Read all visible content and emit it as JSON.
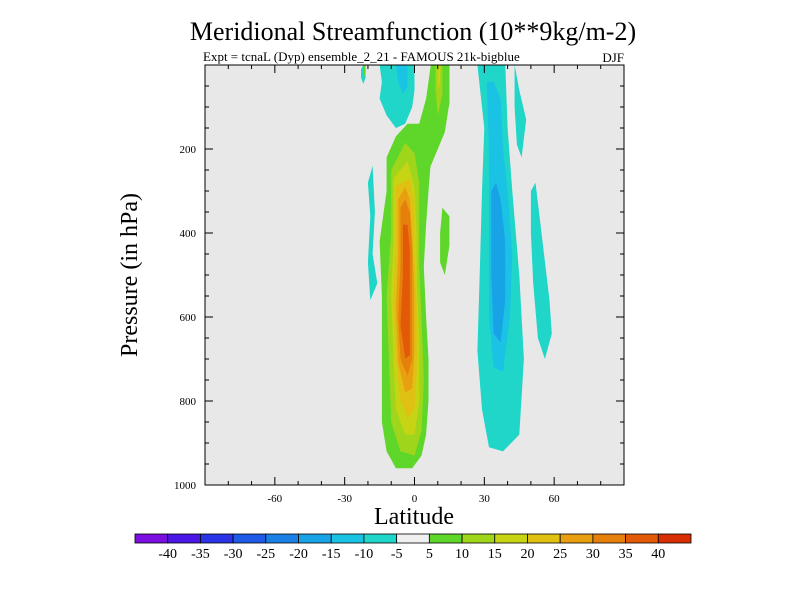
{
  "chart_data": {
    "type": "heatmap",
    "title": "Meridional Streamfunction (10**9kg/m-2)",
    "subtitle_left": "Expt = tcnaL (Dyp) ensemble_2_21 - FAMOUS 21k-bigblue",
    "subtitle_right": "DJF",
    "xlabel": "Latitude",
    "ylabel": "Pressure (in hPa)",
    "xlim": [
      -90,
      90
    ],
    "ylim": [
      0,
      1000
    ],
    "x_ticks": [
      {
        "value": -60,
        "label": "-60"
      },
      {
        "value": -30,
        "label": "-30"
      },
      {
        "value": 0,
        "label": "0"
      },
      {
        "value": 30,
        "label": "30"
      },
      {
        "value": 60,
        "label": "60"
      }
    ],
    "y_ticks": [
      {
        "value": 200,
        "label": "200"
      },
      {
        "value": 400,
        "label": "400"
      },
      {
        "value": 600,
        "label": "600"
      },
      {
        "value": 800,
        "label": "800"
      },
      {
        "value": 1000,
        "label": "1000"
      }
    ],
    "background": "#e8e8e8",
    "colorbar": {
      "levels": [
        -40,
        -35,
        -30,
        -25,
        -20,
        -15,
        -10,
        -5,
        5,
        10,
        15,
        20,
        25,
        30,
        35,
        40
      ],
      "labels": [
        "-40",
        "-35",
        "-30",
        "-25",
        "-20",
        "-15",
        "-10",
        "-5",
        "5",
        "10",
        "15",
        "20",
        "25",
        "30",
        "35",
        "40"
      ],
      "colors": [
        "#7a0fe0",
        "#4b16e6",
        "#2a34e6",
        "#1f5be6",
        "#1a80e6",
        "#18a3e6",
        "#1ac3e3",
        "#1fd6c9",
        "#f0f0f0",
        "#5fd62a",
        "#9fd61c",
        "#c6d414",
        "#e0c012",
        "#e8a010",
        "#e6800c",
        "#e25a08",
        "#d92e04"
      ]
    },
    "contours": [
      {
        "name": "north-cell-outer",
        "value": -10,
        "points": [
          [
            -15,
            0
          ],
          [
            -14,
            40
          ],
          [
            -15,
            80
          ],
          [
            -12,
            120
          ],
          [
            -8,
            150
          ],
          [
            -4,
            140
          ],
          [
            -1,
            100
          ],
          [
            0,
            60
          ],
          [
            0,
            0
          ]
        ]
      },
      {
        "name": "north-cell-inner",
        "value": -15,
        "points": [
          [
            -8,
            0
          ],
          [
            -7,
            40
          ],
          [
            -5,
            70
          ],
          [
            -3,
            50
          ],
          [
            -3,
            0
          ]
        ]
      },
      {
        "name": "north-small-blob",
        "value": -10,
        "points": [
          [
            -22,
            0
          ],
          [
            -21,
            10
          ],
          [
            -21,
            30
          ],
          [
            -22,
            45
          ],
          [
            -23,
            30
          ],
          [
            -23,
            10
          ]
        ]
      },
      {
        "name": "south-cell-outer",
        "value": -10,
        "points": [
          [
            27,
            0
          ],
          [
            30,
            150
          ],
          [
            29,
            300
          ],
          [
            28,
            500
          ],
          [
            27,
            680
          ],
          [
            29,
            820
          ],
          [
            32,
            910
          ],
          [
            38,
            920
          ],
          [
            45,
            880
          ],
          [
            47,
            700
          ],
          [
            45,
            500
          ],
          [
            42,
            300
          ],
          [
            40,
            150
          ],
          [
            39,
            0
          ]
        ]
      },
      {
        "name": "south-cell-inner",
        "value": -15,
        "points": [
          [
            31,
            40
          ],
          [
            32,
            200
          ],
          [
            32,
            400
          ],
          [
            32,
            600
          ],
          [
            34,
            720
          ],
          [
            38,
            730
          ],
          [
            41,
            600
          ],
          [
            42,
            450
          ],
          [
            40,
            300
          ],
          [
            38,
            200
          ],
          [
            37,
            80
          ],
          [
            34,
            40
          ]
        ]
      },
      {
        "name": "south-cell-core",
        "value": -20,
        "points": [
          [
            33,
            300
          ],
          [
            33,
            500
          ],
          [
            34,
            640
          ],
          [
            37,
            660
          ],
          [
            39,
            560
          ],
          [
            39,
            420
          ],
          [
            37,
            320
          ],
          [
            35,
            280
          ]
        ]
      },
      {
        "name": "south-right-limb",
        "value": -10,
        "points": [
          [
            52,
            280
          ],
          [
            55,
            420
          ],
          [
            58,
            560
          ],
          [
            59,
            640
          ],
          [
            56,
            700
          ],
          [
            53,
            650
          ],
          [
            51,
            520
          ],
          [
            50,
            400
          ],
          [
            50,
            300
          ]
        ]
      },
      {
        "name": "south-upper-limb",
        "value": -10,
        "points": [
          [
            43,
            0
          ],
          [
            45,
            60
          ],
          [
            48,
            130
          ],
          [
            46,
            220
          ],
          [
            44,
            190
          ],
          [
            43,
            100
          ]
        ]
      },
      {
        "name": "west-thin-limb",
        "value": -10,
        "points": [
          [
            -18,
            240
          ],
          [
            -17,
            350
          ],
          [
            -18,
            450
          ],
          [
            -16,
            520
          ],
          [
            -19,
            560
          ],
          [
            -20,
            470
          ],
          [
            -19,
            360
          ],
          [
            -20,
            280
          ]
        ]
      },
      {
        "name": "hadley-positive-5",
        "value": 5,
        "points": [
          [
            -12,
            220
          ],
          [
            -12,
            300
          ],
          [
            -15,
            420
          ],
          [
            -14,
            550
          ],
          [
            -14,
            700
          ],
          [
            -14,
            850
          ],
          [
            -12,
            920
          ],
          [
            -8,
            960
          ],
          [
            -1,
            960
          ],
          [
            3,
            930
          ],
          [
            5,
            880
          ],
          [
            6,
            800
          ],
          [
            6,
            700
          ],
          [
            5,
            600
          ],
          [
            4,
            480
          ],
          [
            5,
            380
          ],
          [
            6,
            300
          ],
          [
            7,
            230
          ],
          [
            10,
            190
          ],
          [
            13,
            150
          ],
          [
            15,
            90
          ],
          [
            15,
            0
          ],
          [
            7,
            0
          ],
          [
            5,
            80
          ],
          [
            2,
            140
          ],
          [
            -3,
            140
          ],
          [
            -8,
            170
          ]
        ]
      },
      {
        "name": "hadley-positive-10",
        "value": 10,
        "points": [
          [
            -10,
            250
          ],
          [
            -10,
            400
          ],
          [
            -12,
            550
          ],
          [
            -11,
            700
          ],
          [
            -10,
            850
          ],
          [
            -6,
            920
          ],
          [
            0,
            930
          ],
          [
            3,
            870
          ],
          [
            4,
            750
          ],
          [
            3,
            600
          ],
          [
            2,
            480
          ],
          [
            2,
            380
          ],
          [
            2,
            280
          ],
          [
            0,
            210
          ],
          [
            -4,
            185
          ]
        ]
      },
      {
        "name": "hadley-positive-15",
        "value": 15,
        "points": [
          [
            -9,
            270
          ],
          [
            -9,
            400
          ],
          [
            -10,
            550
          ],
          [
            -9,
            700
          ],
          [
            -8,
            820
          ],
          [
            -4,
            880
          ],
          [
            0,
            880
          ],
          [
            2,
            800
          ],
          [
            2,
            650
          ],
          [
            1,
            520
          ],
          [
            1,
            400
          ],
          [
            0,
            290
          ],
          [
            -3,
            230
          ]
        ]
      },
      {
        "name": "hadley-positive-20",
        "value": 20,
        "points": [
          [
            -8,
            290
          ],
          [
            -8,
            420
          ],
          [
            -9,
            560
          ],
          [
            -8,
            700
          ],
          [
            -6,
            800
          ],
          [
            -3,
            840
          ],
          [
            0,
            820
          ],
          [
            1,
            720
          ],
          [
            1,
            580
          ],
          [
            0,
            450
          ],
          [
            0,
            330
          ],
          [
            -2,
            270
          ]
        ]
      },
      {
        "name": "hadley-positive-25",
        "value": 25,
        "points": [
          [
            -7,
            320
          ],
          [
            -7,
            450
          ],
          [
            -8,
            580
          ],
          [
            -7,
            710
          ],
          [
            -4,
            780
          ],
          [
            -1,
            770
          ],
          [
            0,
            680
          ],
          [
            0,
            540
          ],
          [
            -1,
            410
          ],
          [
            -2,
            320
          ],
          [
            -4,
            290
          ]
        ]
      },
      {
        "name": "hadley-positive-30",
        "value": 30,
        "points": [
          [
            -6,
            340
          ],
          [
            -6,
            470
          ],
          [
            -7,
            600
          ],
          [
            -6,
            700
          ],
          [
            -3,
            740
          ],
          [
            -1,
            700
          ],
          [
            -1,
            560
          ],
          [
            -1,
            440
          ],
          [
            -2,
            350
          ],
          [
            -4,
            320
          ]
        ]
      },
      {
        "name": "hadley-positive-35",
        "value": 35,
        "points": [
          [
            -5,
            380
          ],
          [
            -5,
            500
          ],
          [
            -6,
            620
          ],
          [
            -4,
            700
          ],
          [
            -2,
            690
          ],
          [
            -2,
            560
          ],
          [
            -2,
            440
          ],
          [
            -3,
            380
          ]
        ]
      },
      {
        "name": "upper-right-positive-5",
        "value": 5,
        "points": [
          [
            15,
            0
          ],
          [
            15,
            90
          ],
          [
            13,
            160
          ],
          [
            10,
            200
          ],
          [
            7,
            240
          ],
          [
            5,
            280
          ],
          [
            6,
            230
          ],
          [
            7,
            150
          ],
          [
            8,
            80
          ],
          [
            9,
            0
          ]
        ]
      },
      {
        "name": "upper-right-positive-10",
        "value": 10,
        "points": [
          [
            12,
            0
          ],
          [
            12,
            70
          ],
          [
            10,
            120
          ],
          [
            9,
            60
          ],
          [
            9,
            0
          ]
        ]
      },
      {
        "name": "upper-right-positive-15",
        "value": 15,
        "points": [
          [
            11,
            0
          ],
          [
            11,
            40
          ],
          [
            10,
            60
          ],
          [
            10,
            0
          ]
        ]
      },
      {
        "name": "east-small-positive",
        "value": 5,
        "points": [
          [
            12,
            340
          ],
          [
            15,
            360
          ],
          [
            15,
            430
          ],
          [
            13,
            500
          ],
          [
            11,
            470
          ],
          [
            11,
            400
          ]
        ]
      },
      {
        "name": "far-west-positive",
        "value": 5,
        "points": [
          [
            -22,
            0
          ],
          [
            -21,
            0
          ],
          [
            -21,
            20
          ],
          [
            -22,
            30
          ]
        ]
      }
    ]
  }
}
